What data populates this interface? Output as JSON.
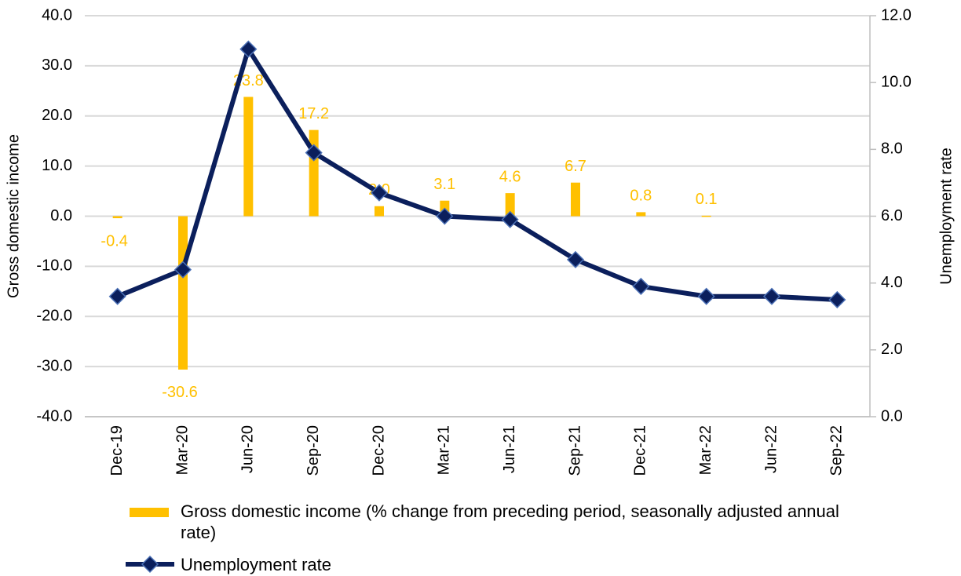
{
  "chart_data": {
    "type": "bar-line",
    "categories": [
      "Dec-19",
      "Mar-20",
      "Jun-20",
      "Sep-20",
      "Dec-20",
      "Mar-21",
      "Jun-21",
      "Sep-21",
      "Dec-21",
      "Mar-22",
      "Jun-22",
      "Sep-22"
    ],
    "ylabel": "Gross domestic income",
    "y2label": "Unemployment rate",
    "ylim": [
      -40,
      40
    ],
    "yticks": [
      {
        "value": -40,
        "label": "-40.0"
      },
      {
        "value": -30,
        "label": "-30.0"
      },
      {
        "value": -20,
        "label": "-20.0"
      },
      {
        "value": -10,
        "label": "-10.0"
      },
      {
        "value": 0,
        "label": "0.0"
      },
      {
        "value": 10,
        "label": "10.0"
      },
      {
        "value": 20,
        "label": "20.0"
      },
      {
        "value": 30,
        "label": "30.0"
      },
      {
        "value": 40,
        "label": "40.0"
      }
    ],
    "y2lim": [
      0,
      12
    ],
    "y2ticks": [
      {
        "value": 0,
        "label": "0.0"
      },
      {
        "value": 2,
        "label": "2.0"
      },
      {
        "value": 4,
        "label": "4.0"
      },
      {
        "value": 6,
        "label": "6.0"
      },
      {
        "value": 8,
        "label": "8.0"
      },
      {
        "value": 10,
        "label": "10.0"
      },
      {
        "value": 12,
        "label": "12.0"
      }
    ],
    "grid": true,
    "series": [
      {
        "name": "Gross domestic income (% change from preceding period, seasonally adjusted annual rate)",
        "type": "bar",
        "color": "#FFC000",
        "values": [
          -0.4,
          -30.6,
          23.8,
          17.2,
          2.0,
          3.1,
          4.6,
          6.7,
          0.8,
          0.1,
          null,
          null
        ],
        "value_labels": [
          "-0.4",
          "-30.6",
          "23.8",
          "17.2",
          "2.0",
          "3.1",
          "4.6",
          "6.7",
          "0.8",
          "0.1",
          null,
          null
        ]
      },
      {
        "name": "Unemployment rate",
        "type": "line",
        "axis": "y2",
        "color": "#0B1F5C",
        "values": [
          3.6,
          4.4,
          11.0,
          7.9,
          6.7,
          6.0,
          5.9,
          4.7,
          3.9,
          3.6,
          3.6,
          3.5
        ]
      }
    ]
  }
}
